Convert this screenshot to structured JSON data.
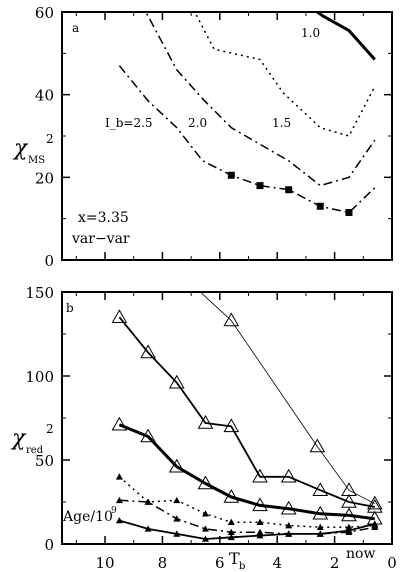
{
  "chart_data": [
    {
      "type": "line",
      "panel_label": "a",
      "ylabel": "χ",
      "ylabel_sub": "MS",
      "ylabel_sup": "2",
      "xlim": [
        0,
        11.5
      ],
      "x_reversed": true,
      "ylim": [
        0,
        60
      ],
      "yticks": [
        0,
        20,
        40,
        60
      ],
      "xticks": [
        10,
        8,
        6,
        4,
        2,
        0
      ],
      "annotations": [
        "x=3.35",
        "var−var"
      ],
      "series": [
        {
          "name": "1.0",
          "style": "solid-thick",
          "x": [
            3.2,
            2.4,
            1.5,
            0.6
          ],
          "y": [
            63,
            59,
            55.5,
            48.5
          ]
        },
        {
          "name": "1.5",
          "style": "dotted",
          "x": [
            7.4,
            6.2,
            4.6,
            3.8,
            2.5,
            1.5,
            0.6
          ],
          "y": [
            67,
            51,
            48.5,
            40.5,
            32,
            30,
            42
          ]
        },
        {
          "name": "2.0",
          "style": "dash-dot",
          "x": [
            9.5,
            8.5,
            7.5,
            6.6,
            5.6,
            4.6,
            3.6,
            2.5,
            1.5,
            0.6
          ],
          "y": [
            70,
            59,
            46,
            39,
            32,
            28,
            24,
            18,
            20,
            29
          ]
        },
        {
          "name": "I_b=2.5",
          "style": "dash-dot-square",
          "x": [
            9.5,
            8.5,
            7.5,
            6.6,
            5.6,
            4.6,
            3.6,
            2.5,
            1.5,
            0.6
          ],
          "y": [
            47,
            38.5,
            32,
            24,
            20.5,
            18,
            17,
            13,
            11.5,
            17.5
          ],
          "marker_indices": [
            4,
            5,
            6,
            7,
            8
          ]
        }
      ],
      "series_labels": [
        "1.0",
        "1.5",
        "2.0",
        "I_b=2.5"
      ]
    },
    {
      "type": "line",
      "panel_label": "b",
      "ylabel": "χ",
      "ylabel_sub": "red",
      "ylabel_sup": "2",
      "xlabel": "T",
      "xlabel_sub": "b",
      "xlim": [
        0,
        11.5
      ],
      "x_reversed": true,
      "ylim": [
        0,
        150
      ],
      "yticks": [
        0,
        50,
        100,
        150
      ],
      "xticks": [
        10,
        8,
        6,
        4,
        2,
        0
      ],
      "xtick_label_now": "now",
      "annotations": [
        "Age/10",
        "9"
      ],
      "series": [
        {
          "style": "thin-open-triangle",
          "x": [
            7.0,
            5.6,
            2.6,
            1.5,
            0.6
          ],
          "y": [
            155,
            133,
            58,
            32,
            24
          ]
        },
        {
          "style": "solid-open-triangle",
          "x": [
            9.5,
            8.5,
            7.5,
            6.5,
            5.6,
            4.6,
            3.6,
            2.5,
            1.5,
            0.6
          ],
          "y": [
            135,
            114,
            96,
            72,
            70,
            40,
            40,
            32,
            25,
            22
          ]
        },
        {
          "style": "thick-open-triangle",
          "x": [
            9.5,
            8.5,
            7.5,
            6.5,
            5.6,
            4.6,
            3.6,
            2.5,
            1.5,
            0.6
          ],
          "y": [
            71,
            64,
            46,
            36,
            28,
            23,
            21,
            18,
            17,
            15
          ]
        },
        {
          "style": "dotted-filled-triangle",
          "x": [
            9.5,
            8.5,
            7.5,
            6.5,
            5.6,
            4.6,
            3.6,
            2.5,
            1.5,
            0.6
          ],
          "y": [
            40,
            25,
            26,
            18,
            13,
            13,
            11,
            10,
            10,
            11
          ]
        },
        {
          "style": "dashdot-filled-triangle",
          "x": [
            9.5,
            8.5,
            7.5,
            6.5,
            5.6,
            4.6,
            3.6,
            2.5,
            1.5,
            0.6
          ],
          "y": [
            26,
            25,
            15,
            9,
            7,
            7,
            6,
            6,
            7,
            10
          ]
        },
        {
          "style": "solid-filled-triangle",
          "x": [
            9.5,
            8.5,
            7.5,
            6.5,
            5.6,
            4.6,
            3.6,
            2.5,
            1.5,
            0.6
          ],
          "y": [
            14,
            9,
            6,
            3,
            4,
            5,
            6,
            6,
            8,
            12
          ]
        }
      ]
    }
  ]
}
